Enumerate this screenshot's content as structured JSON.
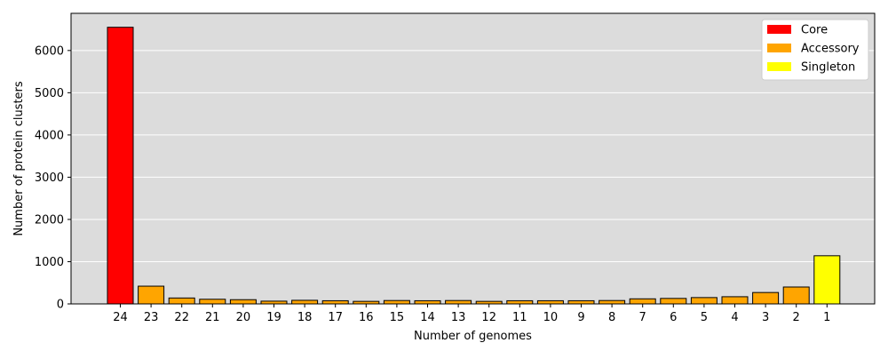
{
  "chart_data": {
    "type": "bar",
    "title": "",
    "xlabel": "Number of genomes",
    "ylabel": "Number of protein clusters",
    "categories": [
      "24",
      "23",
      "22",
      "21",
      "20",
      "19",
      "18",
      "17",
      "16",
      "15",
      "14",
      "13",
      "12",
      "11",
      "10",
      "9",
      "8",
      "7",
      "6",
      "5",
      "4",
      "3",
      "2",
      "1"
    ],
    "values": [
      6550,
      420,
      140,
      110,
      100,
      65,
      85,
      75,
      60,
      80,
      75,
      80,
      60,
      75,
      75,
      75,
      80,
      120,
      130,
      150,
      170,
      270,
      400,
      1140
    ],
    "groups": [
      "Core",
      "Accessory",
      "Accessory",
      "Accessory",
      "Accessory",
      "Accessory",
      "Accessory",
      "Accessory",
      "Accessory",
      "Accessory",
      "Accessory",
      "Accessory",
      "Accessory",
      "Accessory",
      "Accessory",
      "Accessory",
      "Accessory",
      "Accessory",
      "Accessory",
      "Accessory",
      "Accessory",
      "Accessory",
      "Accessory",
      "Singleton"
    ],
    "ylim": [
      0,
      6880
    ],
    "yticks": [
      0,
      1000,
      2000,
      3000,
      4000,
      5000,
      6000
    ],
    "grid": "horizontal",
    "background": "#dcdcdc",
    "legend": {
      "position": "top-right",
      "entries": [
        {
          "label": "Core",
          "color": "#ff0000"
        },
        {
          "label": "Accessory",
          "color": "#ffa500"
        },
        {
          "label": "Singleton",
          "color": "#ffff00"
        }
      ]
    }
  }
}
